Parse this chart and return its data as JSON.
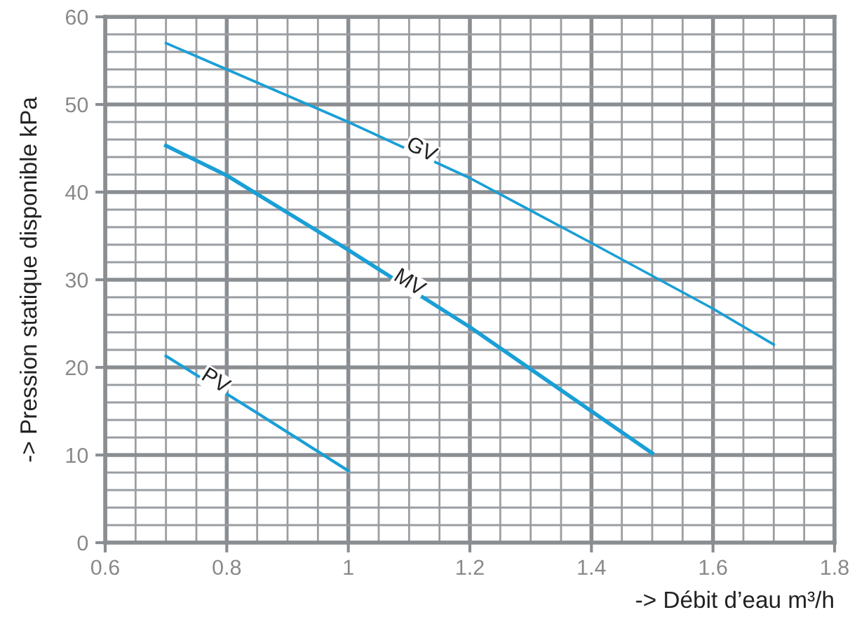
{
  "chart_data": {
    "type": "line",
    "xlabel": "-> Débit d’eau m³/h",
    "ylabel": "-> Pression statique disponible kPa",
    "xlim": [
      0.6,
      1.8
    ],
    "xticks": [
      0.6,
      0.8,
      1,
      1.2,
      1.4,
      1.6,
      1.8
    ],
    "ylim": [
      0,
      60
    ],
    "yticks": [
      0,
      10,
      20,
      30,
      40,
      50,
      60
    ],
    "grid": true,
    "marker": "none",
    "line_style": "solid",
    "series": [
      {
        "name": "GV",
        "color": "#1a9fd6",
        "x": [
          0.7,
          0.8,
          1.0,
          1.2,
          1.4,
          1.6,
          1.7
        ],
        "values": [
          57,
          54,
          48,
          41.6,
          34.2,
          26.7,
          22.6
        ]
      },
      {
        "name": "MV",
        "color": "#1a9fd6",
        "x": [
          0.7,
          0.8,
          1.0,
          1.2,
          1.4,
          1.5
        ],
        "values": [
          45.3,
          41.9,
          33.4,
          24.6,
          15,
          10.2
        ]
      },
      {
        "name": "PV",
        "color": "#1a9fd6",
        "x": [
          0.7,
          0.85,
          1.0
        ],
        "values": [
          21.3,
          14.8,
          8.2
        ]
      }
    ]
  }
}
